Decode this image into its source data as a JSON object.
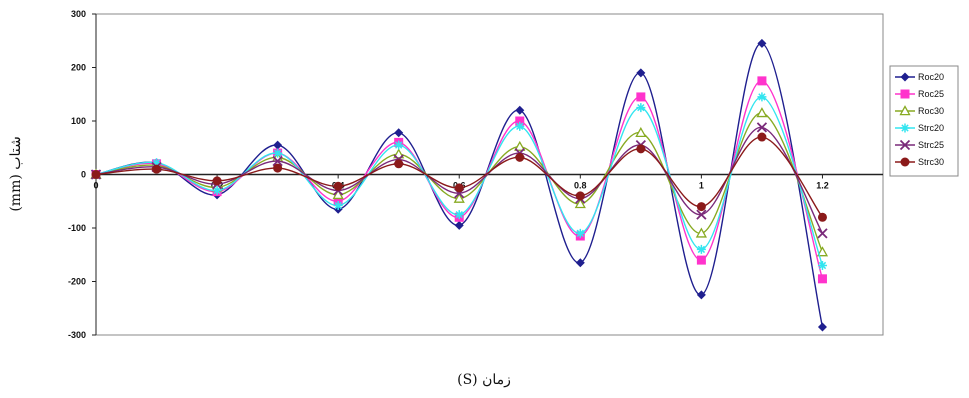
{
  "chart_data": {
    "type": "line",
    "title": "",
    "xlabel": "زمان (S)",
    "ylabel": "شتاب (mm)",
    "x": [
      0,
      0.1,
      0.2,
      0.3,
      0.4,
      0.5,
      0.6,
      0.7,
      0.8,
      0.9,
      1.0,
      1.1,
      1.2
    ],
    "x_tick_labels": [
      "0",
      "0.2",
      "0.4",
      "0.6",
      "0.8",
      "1",
      "1.2"
    ],
    "x_tick_values": [
      0,
      0.2,
      0.4,
      0.6,
      0.8,
      1.0,
      1.2
    ],
    "y_tick_labels": [
      "300",
      "200",
      "100",
      "0",
      "-100",
      "-200",
      "-300"
    ],
    "y_tick_values": [
      300,
      200,
      100,
      0,
      -100,
      -200,
      -300
    ],
    "xlim": [
      0,
      1.3
    ],
    "ylim": [
      -300,
      300
    ],
    "grid": false,
    "legend_position": "right",
    "series": [
      {
        "name": "Roc20",
        "color": "#1f1f8f",
        "marker": "diamond",
        "values": [
          0,
          22,
          -38,
          55,
          -65,
          78,
          -95,
          120,
          -165,
          190,
          -225,
          245,
          -285
        ]
      },
      {
        "name": "Roc25",
        "color": "#ff33cc",
        "marker": "square",
        "values": [
          0,
          20,
          -32,
          40,
          -50,
          60,
          -80,
          100,
          -115,
          145,
          -160,
          175,
          -195
        ]
      },
      {
        "name": "Roc30",
        "color": "#88aa22",
        "marker": "triangle",
        "values": [
          0,
          17,
          -24,
          32,
          -38,
          38,
          -45,
          52,
          -55,
          78,
          -110,
          115,
          -145
        ]
      },
      {
        "name": "Strc20",
        "color": "#33e5f0",
        "marker": "star",
        "values": [
          0,
          22,
          -30,
          40,
          -58,
          55,
          -75,
          90,
          -110,
          125,
          -140,
          145,
          -170
        ]
      },
      {
        "name": "Strc25",
        "color": "#7a2a7a",
        "marker": "x",
        "values": [
          0,
          14,
          -18,
          25,
          -30,
          28,
          -35,
          40,
          -45,
          55,
          -75,
          88,
          -110
        ]
      },
      {
        "name": "Strc30",
        "color": "#8b1a1a",
        "marker": "circle",
        "values": [
          0,
          10,
          -12,
          12,
          -22,
          20,
          -25,
          32,
          -40,
          48,
          -60,
          70,
          -80
        ]
      }
    ]
  }
}
